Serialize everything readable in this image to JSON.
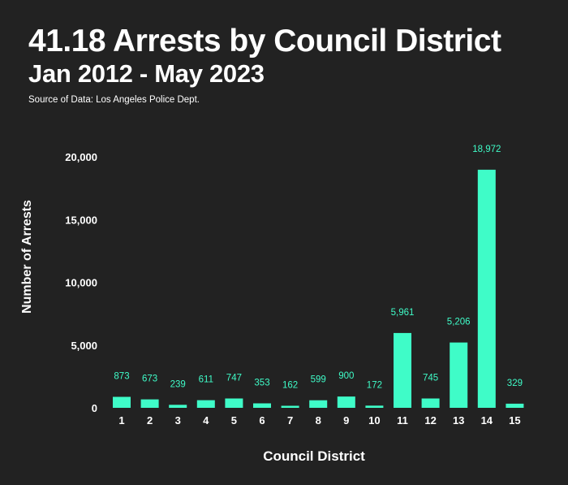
{
  "header": {
    "title": "41.18 Arrests by Council District",
    "subtitle": "Jan 2012 - May 2023",
    "source": "Source of Data: Los Angeles Police Dept."
  },
  "colors": {
    "background": "#222222",
    "bar": "#3ffcc8",
    "data_label": "#3ffcc8",
    "text": "#ffffff"
  },
  "chart_data": {
    "type": "bar",
    "title": "41.18 Arrests by Council District",
    "subtitle": "Jan 2012 - May 2023",
    "xlabel": "Council District",
    "ylabel": "Number of Arrests",
    "categories": [
      "1",
      "2",
      "3",
      "4",
      "5",
      "6",
      "7",
      "8",
      "9",
      "10",
      "11",
      "12",
      "13",
      "14",
      "15"
    ],
    "values": [
      873,
      673,
      239,
      611,
      747,
      353,
      162,
      599,
      900,
      172,
      5961,
      745,
      5206,
      18972,
      329
    ],
    "data_labels": [
      "873",
      "673",
      "239",
      "611",
      "747",
      "353",
      "162",
      "599",
      "900",
      "172",
      "5,961",
      "745",
      "5,206",
      "18,972",
      "329"
    ],
    "yticks": [
      0,
      5000,
      10000,
      15000,
      20000
    ],
    "ytick_labels": [
      "0",
      "5,000",
      "10,000",
      "15,000",
      "20,000"
    ],
    "ylim": [
      0,
      20000
    ],
    "grid": false,
    "legend": "none"
  }
}
